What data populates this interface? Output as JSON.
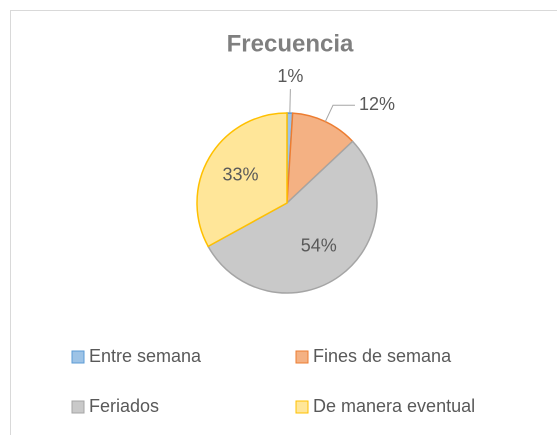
{
  "chart_data": {
    "type": "pie",
    "title": "Frecuencia",
    "categories": [
      "Entre semana",
      "Fines de semana",
      "Feriados",
      "De manera eventual"
    ],
    "values": [
      1,
      12,
      54,
      33
    ],
    "value_labels": [
      "1%",
      "12%",
      "54%",
      "33%"
    ],
    "colors": [
      "#9dc3e6",
      "#f4b183",
      "#c9c9c9",
      "#ffe699"
    ],
    "border_colors": [
      "#5b9bd5",
      "#ed7d31",
      "#a5a5a5",
      "#ffc000"
    ],
    "legend": "bottom"
  }
}
